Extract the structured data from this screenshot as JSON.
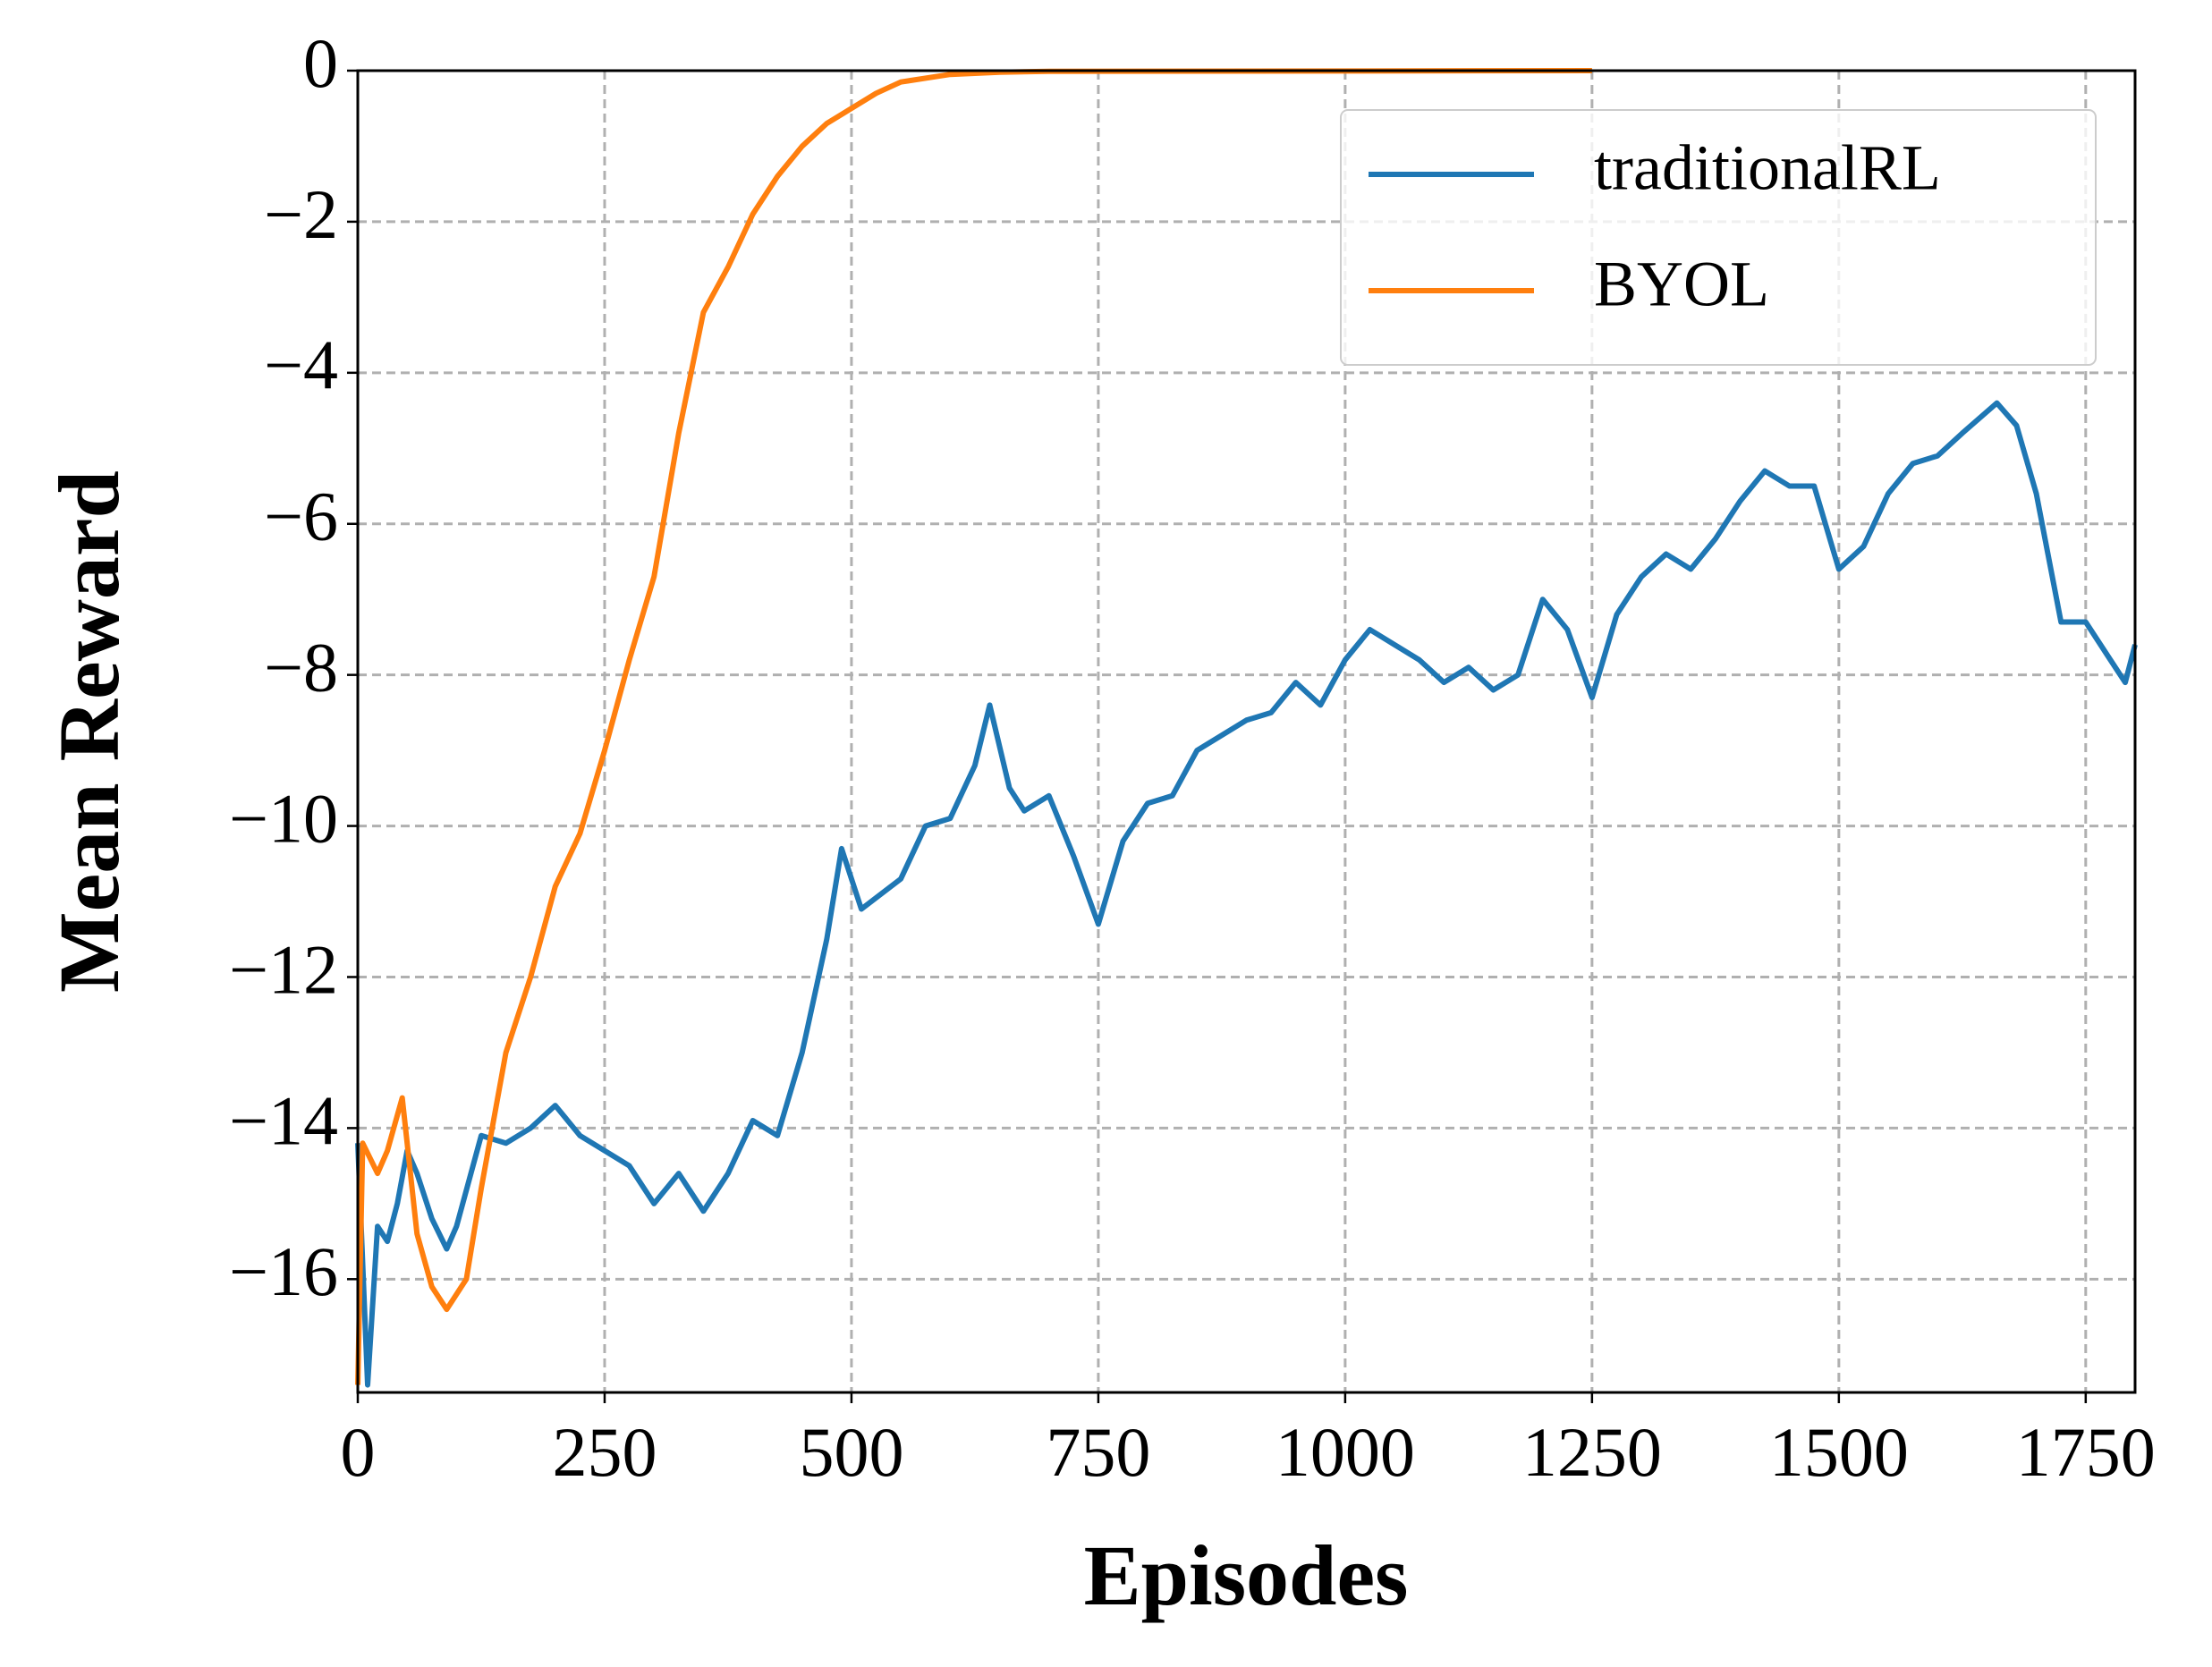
{
  "chart_data": {
    "type": "line",
    "xlabel": "Episodes",
    "ylabel": "Mean Reward",
    "xlim": [
      0,
      1800
    ],
    "ylim": [
      -17.5,
      0
    ],
    "xticks": [
      0,
      250,
      500,
      750,
      1000,
      1250,
      1500,
      1750
    ],
    "yticks": [
      {
        "value": -16,
        "label": "−16"
      },
      {
        "value": -14,
        "label": "−14"
      },
      {
        "value": -12,
        "label": "−12"
      },
      {
        "value": -10,
        "label": "−10"
      },
      {
        "value": -8,
        "label": "−8"
      },
      {
        "value": -6,
        "label": "−6"
      },
      {
        "value": -4,
        "label": "−4"
      },
      {
        "value": -2,
        "label": "−2"
      },
      0
    ],
    "grid": true,
    "legend": "upper right",
    "series": [
      {
        "name": "traditionalRL",
        "color": "#1f77b4",
        "x": [
          0,
          10,
          20,
          30,
          40,
          50,
          60,
          75,
          90,
          100,
          125,
          150,
          175,
          200,
          225,
          250,
          275,
          300,
          325,
          350,
          375,
          400,
          425,
          450,
          475,
          490,
          510,
          550,
          575,
          600,
          625,
          640,
          660,
          675,
          700,
          725,
          750,
          775,
          800,
          825,
          850,
          875,
          900,
          925,
          950,
          975,
          1000,
          1025,
          1050,
          1075,
          1100,
          1125,
          1150,
          1175,
          1200,
          1225,
          1250,
          1275,
          1300,
          1325,
          1350,
          1375,
          1400,
          1425,
          1450,
          1475,
          1500,
          1525,
          1550,
          1575,
          1600,
          1625,
          1660,
          1680,
          1700,
          1725,
          1750,
          1775,
          1790,
          1800
        ],
        "values": [
          -14.2,
          -17.4,
          -15.3,
          -15.5,
          -15.0,
          -14.3,
          -14.6,
          -15.2,
          -15.6,
          -15.3,
          -14.1,
          -14.2,
          -14.0,
          -13.7,
          -14.1,
          -14.3,
          -14.5,
          -15.0,
          -14.6,
          -15.1,
          -14.6,
          -13.9,
          -14.1,
          -13.0,
          -11.5,
          -10.3,
          -11.1,
          -10.7,
          -10.0,
          -9.9,
          -9.2,
          -8.4,
          -9.5,
          -9.8,
          -9.6,
          -10.4,
          -11.3,
          -10.2,
          -9.7,
          -9.6,
          -9.0,
          -8.8,
          -8.6,
          -8.5,
          -8.1,
          -8.4,
          -7.8,
          -7.4,
          -7.6,
          -7.8,
          -8.1,
          -7.9,
          -8.2,
          -8.0,
          -7.0,
          -7.4,
          -8.3,
          -7.2,
          -6.7,
          -6.4,
          -6.6,
          -6.2,
          -5.7,
          -5.3,
          -5.5,
          -5.5,
          -6.6,
          -6.3,
          -5.6,
          -5.2,
          -5.1,
          -4.8,
          -4.4,
          -4.7,
          -5.6,
          -7.3,
          -7.3,
          -7.8,
          -8.1,
          -7.6
        ]
      },
      {
        "name": "BYOL",
        "color": "#ff7f0e",
        "x": [
          0,
          5,
          20,
          30,
          45,
          60,
          75,
          90,
          110,
          125,
          150,
          175,
          200,
          225,
          250,
          275,
          300,
          325,
          350,
          375,
          400,
          425,
          450,
          475,
          500,
          525,
          550,
          600,
          650,
          700,
          1250
        ],
        "values": [
          -17.4,
          -14.2,
          -14.6,
          -14.3,
          -13.6,
          -15.4,
          -16.1,
          -16.4,
          -16.0,
          -14.8,
          -13.0,
          -12.0,
          -10.8,
          -10.1,
          -9.0,
          -7.8,
          -6.7,
          -4.8,
          -3.2,
          -2.6,
          -1.9,
          -1.4,
          -1.0,
          -0.7,
          -0.5,
          -0.3,
          -0.15,
          -0.05,
          -0.02,
          -0.01,
          0
        ]
      }
    ]
  }
}
